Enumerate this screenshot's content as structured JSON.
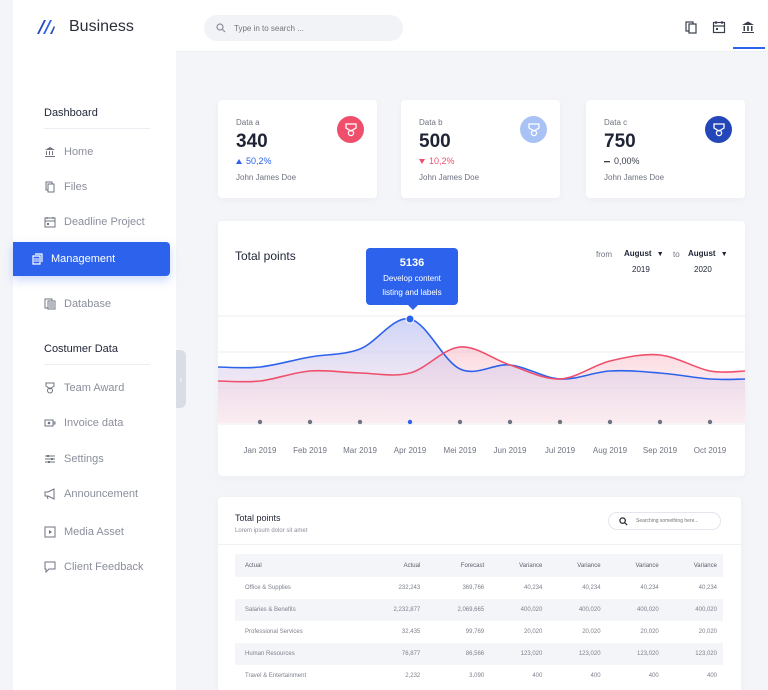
{
  "brand": {
    "name": "Business"
  },
  "search": {
    "placeholder": "Type in to search ..."
  },
  "sidebar": {
    "section1": "Dashboard",
    "section2": "Costumer Data",
    "items": [
      {
        "label": "Home",
        "icon": "bank-icon"
      },
      {
        "label": "Files",
        "icon": "files-icon"
      },
      {
        "label": "Deadline Project",
        "icon": "calendar-icon"
      },
      {
        "label": "Management",
        "icon": "management-icon",
        "active": true
      },
      {
        "label": "Database",
        "icon": "database-icon"
      },
      {
        "label": "Team Award",
        "icon": "award-icon"
      },
      {
        "label": "Invoice data",
        "icon": "invoice-icon"
      },
      {
        "label": "Settings",
        "icon": "sliders-icon"
      },
      {
        "label": "Announcement",
        "icon": "megaphone-icon"
      },
      {
        "label": "Media Asset",
        "icon": "media-icon"
      },
      {
        "label": "Client Feedback",
        "icon": "chat-icon"
      }
    ]
  },
  "stats": [
    {
      "label": "Data a",
      "value": "340",
      "change": "50,2%",
      "trend": "up",
      "owner": "John James Doe",
      "badge_color": "#ef4f6a"
    },
    {
      "label": "Data b",
      "value": "500",
      "change": "10,2%",
      "trend": "down",
      "owner": "John James Doe",
      "badge_color": "#a9c2f5"
    },
    {
      "label": "Data c",
      "value": "750",
      "change": "0,00%",
      "trend": "flat",
      "owner": "John James Doe",
      "badge_color": "#2346b8"
    }
  ],
  "chart": {
    "title": "Total points",
    "from_label": "from",
    "from_month": "August",
    "from_year": "2019",
    "to_label": "to",
    "to_month": "August",
    "to_year": "2020",
    "tooltip_value": "5136",
    "tooltip_text": "Develop content listing and labels"
  },
  "chart_data": {
    "type": "area",
    "title": "Total points",
    "categories": [
      "Jan 2019",
      "Feb 2019",
      "Mar 2019",
      "Apr 2019",
      "Mei 2019",
      "Jun 2019",
      "Jul 2019",
      "Aug 2019",
      "Sep 2019",
      "Oct 2019"
    ],
    "series": [
      {
        "name": "blue",
        "color": "#2d63ec",
        "values": [
          380,
          430,
          470,
          620,
          370,
          390,
          320,
          360,
          350,
          320
        ]
      },
      {
        "name": "red",
        "color": "#ef4f6a",
        "values": [
          310,
          360,
          350,
          350,
          480,
          390,
          320,
          410,
          440,
          360
        ]
      }
    ],
    "highlight_index": 3,
    "ylim": [
      100,
      800
    ]
  },
  "table": {
    "title": "Total points",
    "subtitle": "Lorem ipsum dolor sit amet",
    "search_placeholder": "Searching something here...",
    "columns": [
      "Actual",
      "Actual",
      "Forecast",
      "Variance",
      "Variance",
      "Variance",
      "Variance"
    ],
    "rows": [
      [
        "Office & Supplies",
        "232,243",
        "369,766",
        "40,234",
        "40,234",
        "40,234",
        "40,234"
      ],
      [
        "Salaries & Benefits",
        "2,232,877",
        "2,069,665",
        "400,020",
        "400,020",
        "400,020",
        "400,020"
      ],
      [
        "Professional Services",
        "32,435",
        "99,769",
        "20,020",
        "20,020",
        "20,020",
        "20,020"
      ],
      [
        "Human Resources",
        "76,877",
        "86,566",
        "123,020",
        "123,020",
        "123,020",
        "123,020"
      ],
      [
        "Travel & Entertainment",
        "2,232",
        "3,090",
        "400",
        "400",
        "400",
        "400"
      ]
    ]
  }
}
